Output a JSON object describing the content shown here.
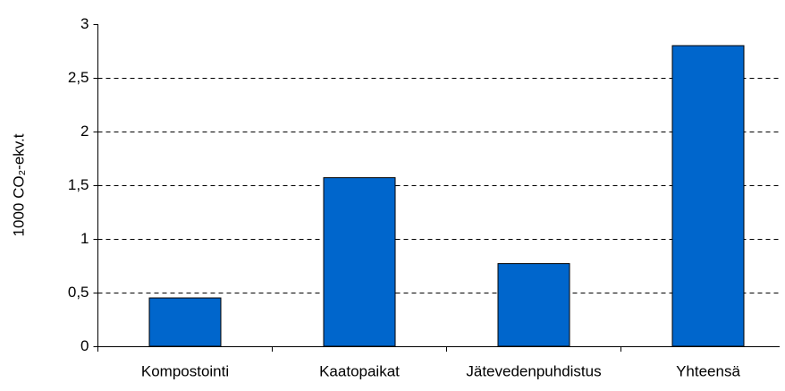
{
  "chart_data": {
    "type": "bar",
    "y_label": "1000 CO₂-ekv.t",
    "categories": [
      "Kompostointi",
      "Kaatopaikat",
      "Jätevedenpuhdistus",
      "Yhteensä"
    ],
    "values": [
      0.45,
      1.57,
      0.77,
      2.8
    ],
    "color": "#0066cc",
    "ylim": [
      0,
      3
    ],
    "yticks": [
      0,
      {
        "value": 0.5,
        "label": "0,5"
      },
      1,
      {
        "value": 1.5,
        "label": "1,5"
      },
      2,
      {
        "value": 2.5,
        "label": "2,5"
      },
      3
    ],
    "grid": true
  }
}
